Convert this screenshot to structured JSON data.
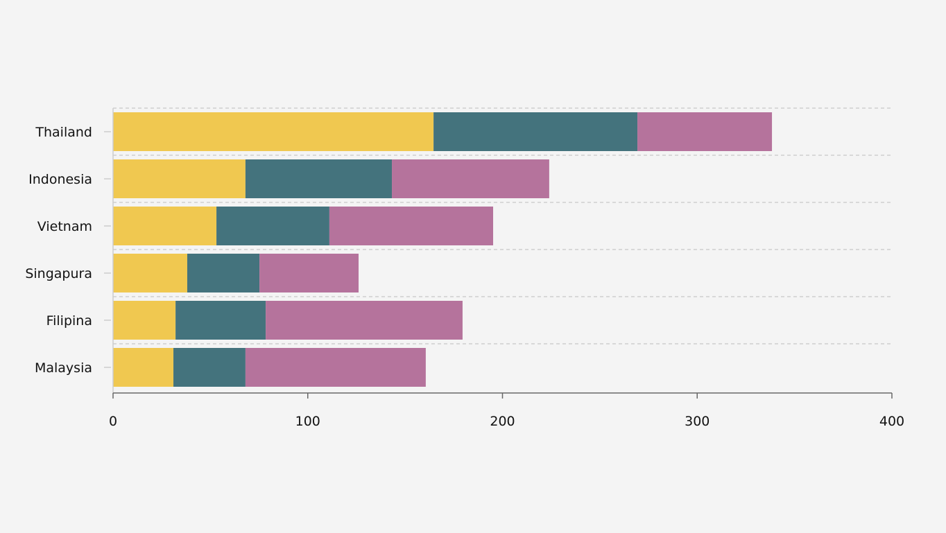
{
  "chart_data": {
    "type": "bar",
    "orientation": "horizontal",
    "stacked": true,
    "title": "",
    "xlabel": "",
    "ylabel": "",
    "xlim": [
      0,
      400
    ],
    "x_ticks": [
      0,
      100,
      200,
      300,
      400
    ],
    "grid": "horizontal dashed",
    "legend": "none",
    "categories": [
      "Thailand",
      "Indonesia",
      "Vietnam",
      "Singapura",
      "Filipina",
      "Malaysia"
    ],
    "series": [
      {
        "color": "#f0c850",
        "values": [
          164.6,
          68.0,
          53.1,
          38.1,
          32.1,
          31.0
        ]
      },
      {
        "color": "#44737d",
        "values": [
          104.7,
          75.2,
          58.0,
          37.1,
          46.3,
          37.0
        ]
      },
      {
        "color": "#b5739c",
        "values": [
          69.1,
          80.8,
          84.1,
          50.9,
          101.1,
          92.6
        ]
      }
    ]
  }
}
